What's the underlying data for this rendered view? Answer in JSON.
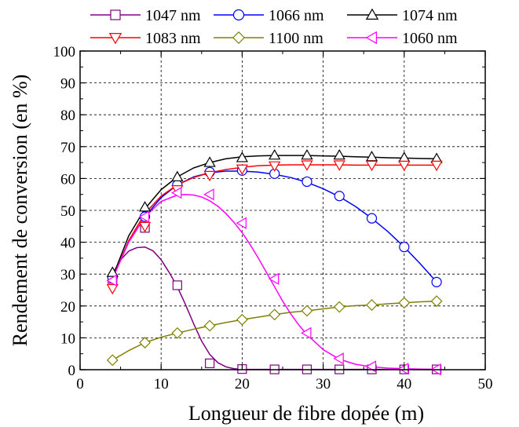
{
  "chart_data": {
    "type": "line",
    "title": "",
    "xlabel": "Longueur de fibre dopée (m)",
    "ylabel": "Rendement de conversion (en %)",
    "xlim": [
      0,
      50
    ],
    "ylim": [
      0,
      100
    ],
    "xticks": [
      0,
      10,
      20,
      30,
      40,
      50
    ],
    "yticks": [
      0,
      10,
      20,
      30,
      40,
      50,
      60,
      70,
      80,
      90,
      100
    ],
    "grid": "dashed",
    "legend_position": "top, outside the plot, two rows of three",
    "series": [
      {
        "name": "1047 nm",
        "color": "#800080",
        "marker": "square",
        "x": [
          4,
          8,
          12,
          16,
          20,
          24,
          28,
          32,
          36,
          40,
          44
        ],
        "y": [
          28.5,
          44.5,
          26.5,
          2,
          0.2,
          0.1,
          0.1,
          0.1,
          0.1,
          0.1,
          0.1
        ],
        "curve_x": [
          4,
          5,
          6,
          7,
          8,
          9,
          10,
          11,
          12,
          13,
          14,
          15,
          16,
          17,
          18,
          19,
          20,
          22,
          24,
          28,
          32,
          36,
          40,
          44
        ],
        "curve_y": [
          30,
          34.5,
          37.2,
          38.3,
          38.5,
          37.3,
          34.5,
          30.5,
          26,
          20.5,
          14.5,
          9,
          4.8,
          2.2,
          0.9,
          0.3,
          0.1,
          0.1,
          0.1,
          0.1,
          0.1,
          0.1,
          0.1,
          0.1
        ]
      },
      {
        "name": "1066 nm",
        "color": "#0000ff",
        "marker": "circle",
        "x": [
          4,
          8,
          12,
          16,
          20,
          24,
          28,
          32,
          36,
          40,
          44
        ],
        "y": [
          29,
          48,
          58,
          62,
          62.5,
          61.5,
          59,
          54.5,
          47.5,
          38.5,
          27.5
        ],
        "curve_x": [
          4,
          6,
          8,
          10,
          12,
          14,
          16,
          18,
          20,
          22,
          24,
          26,
          28,
          30,
          32,
          34,
          36,
          38,
          40,
          42,
          44
        ],
        "curve_y": [
          29,
          40,
          48,
          54,
          58,
          60.5,
          61.8,
          62.3,
          62.3,
          62,
          61.3,
          60.3,
          58.8,
          56.8,
          54.3,
          51.2,
          47.5,
          43.3,
          38.5,
          33.2,
          27.5
        ]
      },
      {
        "name": "1074 nm",
        "color": "#000000",
        "marker": "triangle-up",
        "x": [
          4,
          8,
          12,
          16,
          20,
          24,
          28,
          32,
          36,
          40,
          44
        ],
        "y": [
          30.5,
          51,
          60.5,
          65,
          66.5,
          67.3,
          67.3,
          67.3,
          66.8,
          66.5,
          66.2
        ],
        "curve_x": [
          4,
          6,
          8,
          10,
          12,
          14,
          16,
          18,
          20,
          22,
          24,
          26,
          28,
          30,
          32,
          34,
          36,
          38,
          40,
          42,
          44
        ],
        "curve_y": [
          29,
          42,
          50.5,
          56.5,
          60.5,
          63.3,
          65,
          66.2,
          66.8,
          67.1,
          67.2,
          67.2,
          67.2,
          67.1,
          67,
          66.8,
          66.7,
          66.5,
          66.4,
          66.3,
          66.2
        ]
      },
      {
        "name": "1083 nm",
        "color": "#ff0000",
        "marker": "triangle-down",
        "x": [
          4,
          8,
          12,
          16,
          20,
          24,
          28,
          32,
          36,
          40,
          44
        ],
        "y": [
          25.5,
          45,
          56.5,
          61,
          63,
          64,
          64.3,
          64.3,
          64.2,
          64.2,
          64.2
        ],
        "curve_x": [
          4,
          6,
          8,
          10,
          12,
          14,
          16,
          18,
          20,
          22,
          24,
          26,
          28,
          30,
          32,
          34,
          36,
          38,
          40,
          42,
          44
        ],
        "curve_y": [
          28.5,
          40.5,
          49,
          54.5,
          58,
          60.3,
          61.8,
          62.8,
          63.5,
          64,
          64.2,
          64.3,
          64.3,
          64.3,
          64.3,
          64.2,
          64.2,
          64.2,
          64.2,
          64.2,
          64.2
        ]
      },
      {
        "name": "1100 nm",
        "color": "#808000",
        "marker": "diamond",
        "x": [
          4,
          8,
          12,
          16,
          20,
          24,
          28,
          32,
          36,
          40,
          44
        ],
        "y": [
          3,
          8.5,
          11.5,
          13.8,
          15.7,
          17.3,
          18.5,
          19.7,
          20.3,
          21,
          21.5
        ],
        "curve_x": [
          4,
          6,
          8,
          10,
          12,
          14,
          16,
          18,
          20,
          22,
          24,
          26,
          28,
          30,
          32,
          34,
          36,
          38,
          40,
          42,
          44
        ],
        "curve_y": [
          3,
          6,
          8.5,
          10.2,
          11.5,
          12.7,
          13.8,
          14.8,
          15.7,
          16.5,
          17.3,
          18,
          18.5,
          19.1,
          19.7,
          20.1,
          20.3,
          20.7,
          21,
          21.3,
          21.5
        ]
      },
      {
        "name": "1060 nm",
        "color": "#ff00ff",
        "marker": "triangle-left",
        "x": [
          4,
          8,
          12,
          16,
          20,
          24,
          28,
          32,
          36,
          40,
          44
        ],
        "y": [
          28,
          48,
          55.5,
          55,
          46,
          28.5,
          11.5,
          3.5,
          1,
          0.3,
          0.1
        ],
        "curve_x": [
          4,
          6,
          8,
          10,
          12,
          13,
          14,
          15,
          16,
          17,
          18,
          19,
          20,
          21,
          22,
          23,
          24,
          25,
          26,
          27,
          28,
          30,
          32,
          34,
          36,
          38,
          40,
          42,
          44
        ],
        "curve_y": [
          28.5,
          40,
          48,
          52.8,
          54.8,
          55,
          54.8,
          54.2,
          53,
          51.3,
          49,
          46.2,
          43,
          39.2,
          35,
          30.5,
          26,
          21.5,
          17.5,
          14,
          11,
          6.3,
          3.3,
          1.7,
          0.9,
          0.5,
          0.3,
          0.2,
          0.1
        ]
      }
    ]
  }
}
